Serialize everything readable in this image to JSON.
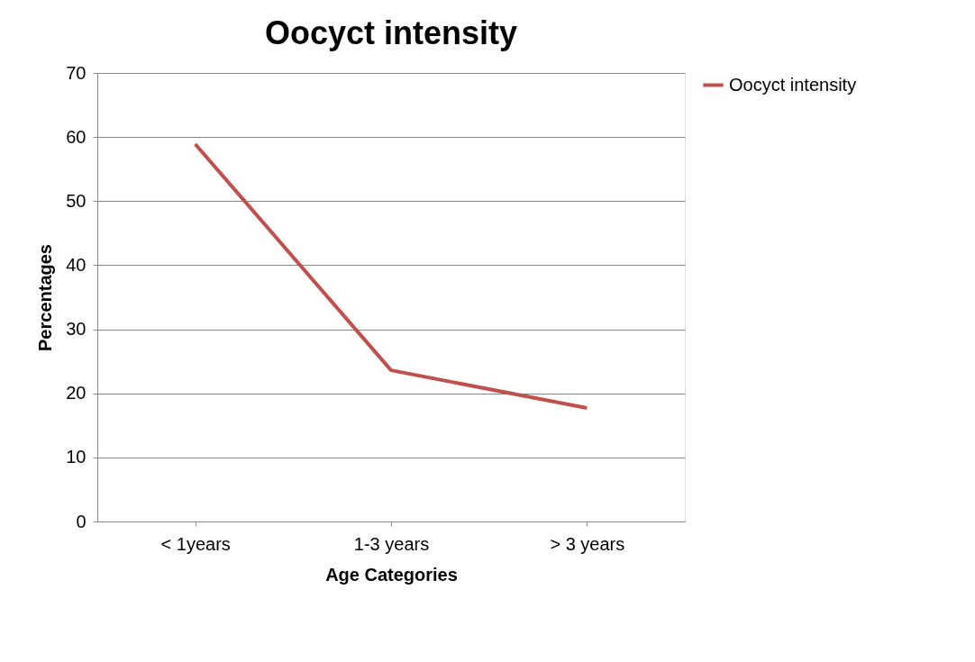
{
  "chart_data": {
    "type": "line",
    "title": "Oocyct intensity",
    "xlabel": "Age Categories",
    "ylabel": "Percentages",
    "categories": [
      "< 1years",
      "1-3 years",
      "> 3 years"
    ],
    "series": [
      {
        "name": "Oocyct intensity",
        "color": "#c0504d",
        "values": [
          58.9,
          23.6,
          17.7
        ]
      }
    ],
    "ylim": [
      0,
      70
    ],
    "yticks": [
      0,
      10,
      20,
      30,
      40,
      50,
      60,
      70
    ],
    "grid": "y",
    "legend": "right",
    "marker": "none",
    "line_style": "solid"
  }
}
